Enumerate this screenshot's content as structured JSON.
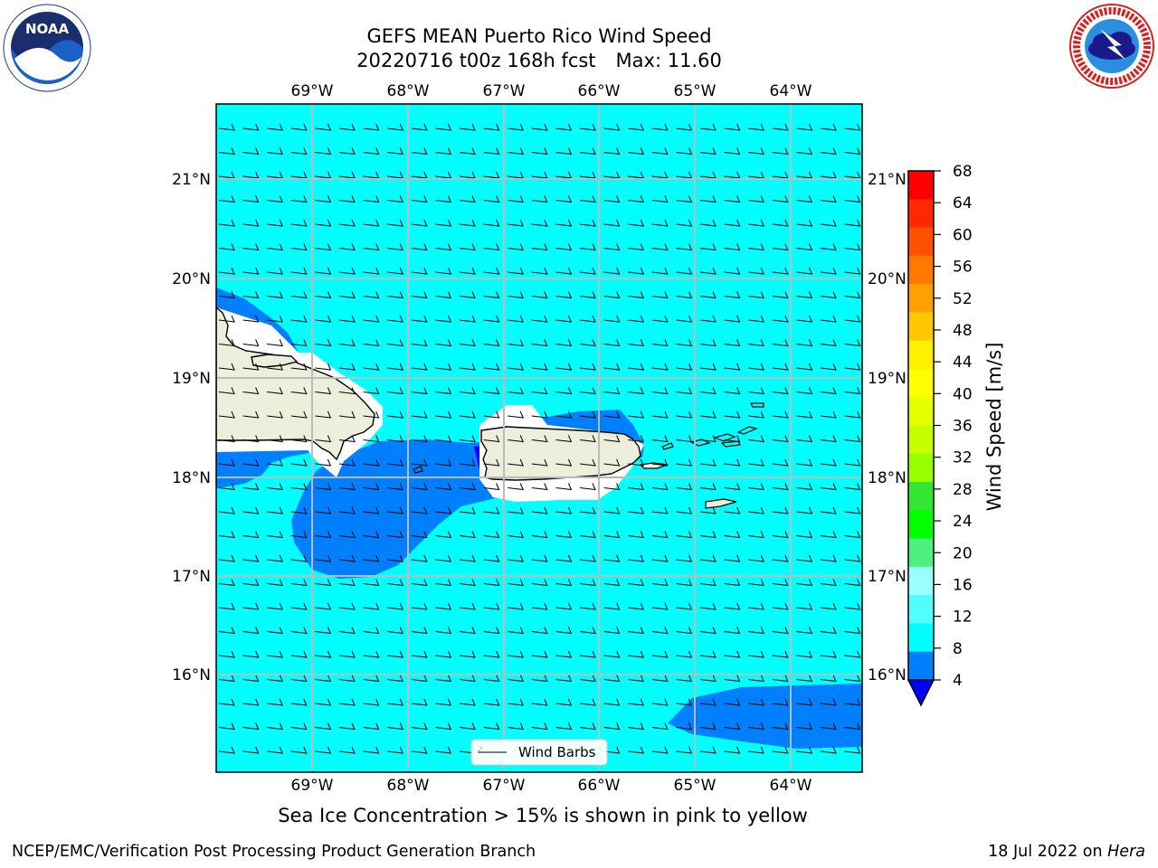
{
  "header": {
    "title_line1": "GEFS MEAN Puerto Rico Wind Speed",
    "title_run": "20220716 t00z 168h fcst",
    "title_max": "Max: 11.60"
  },
  "logos": {
    "left": {
      "text": "NOAA",
      "ring_text": "NATIONAL OCEANIC AND ATMOSPHERIC ADMINISTRATION · U.S. DEPARTMENT OF COMMERCE"
    },
    "right": {
      "ring_text": "NATIONAL WEATHER SERVICE"
    }
  },
  "map": {
    "lon_labels": [
      "69°W",
      "68°W",
      "67°W",
      "66°W",
      "65°W",
      "64°W"
    ],
    "lat_labels": [
      "21°N",
      "20°N",
      "19°N",
      "18°N",
      "17°N",
      "16°N"
    ],
    "legend_label": "Wind Barbs",
    "colors": {
      "ocean": "#00ffff",
      "band_4_8": "#0080ff",
      "band_below_4": "#0000ff",
      "land": "#eeeedc",
      "grid": "#bbbbbb"
    }
  },
  "colorbar": {
    "label": "Wind Speed [m/s]",
    "ticks": [
      "68",
      "64",
      "60",
      "56",
      "52",
      "48",
      "44",
      "40",
      "36",
      "32",
      "28",
      "24",
      "20",
      "16",
      "12",
      "8",
      "4"
    ],
    "colors": [
      "#ff0000",
      "#ff2800",
      "#ff5000",
      "#ff7800",
      "#ffa000",
      "#ffc800",
      "#fff000",
      "#ffff00",
      "#e6ff00",
      "#c8ff00",
      "#96ff00",
      "#32e632",
      "#00ff00",
      "#50f080",
      "#9cffff",
      "#50ffff",
      "#00ffff",
      "#0080ff"
    ],
    "extend_color": "#0000ff"
  },
  "subtitle": "Sea Ice Concentration > 15% is shown in pink to yellow",
  "footer": {
    "left": "NCEP/EMC/Verification Post Processing Product Generation Branch",
    "date": "18 Jul 2022 on",
    "machine": "Hera"
  }
}
